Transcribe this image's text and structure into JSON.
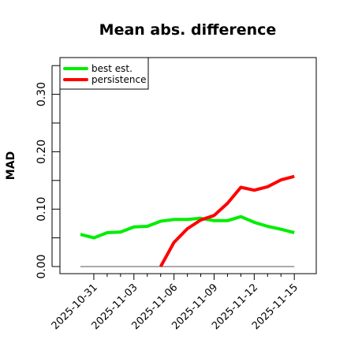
{
  "chart_data": {
    "type": "line",
    "title": "Mean abs. difference",
    "xlabel": "",
    "ylabel": "MAD",
    "x": [
      "2025-10-30",
      "2025-10-31",
      "2025-11-01",
      "2025-11-02",
      "2025-11-03",
      "2025-11-04",
      "2025-11-05",
      "2025-11-06",
      "2025-11-07",
      "2025-11-08",
      "2025-11-09",
      "2025-11-10",
      "2025-11-11",
      "2025-11-12",
      "2025-11-13",
      "2025-11-14",
      "2025-11-15"
    ],
    "xticks": [
      "2025-10-31",
      "2025-11-03",
      "2025-11-06",
      "2025-11-09",
      "2025-11-12",
      "2025-11-15"
    ],
    "yticks": [
      "0.00",
      "0.10",
      "0.20",
      "0.30"
    ],
    "ylim": [
      -0.01,
      0.365
    ],
    "grid": false,
    "legend_position": "top-left",
    "series": [
      {
        "name": "best est.",
        "color": "#00ee00",
        "values": [
          0.056,
          0.05,
          0.059,
          0.06,
          0.069,
          0.07,
          0.079,
          0.082,
          0.082,
          0.084,
          0.08,
          0.08,
          0.087,
          0.077,
          0.07,
          0.065,
          0.059
        ]
      },
      {
        "name": "persistence",
        "color": "#ff0000",
        "values": [
          null,
          null,
          null,
          null,
          null,
          null,
          0.0,
          0.042,
          0.066,
          0.081,
          0.089,
          0.11,
          0.138,
          0.133,
          0.139,
          0.151,
          0.157
        ]
      }
    ],
    "reference_line": {
      "value": 0.0,
      "color": "#777777"
    }
  }
}
